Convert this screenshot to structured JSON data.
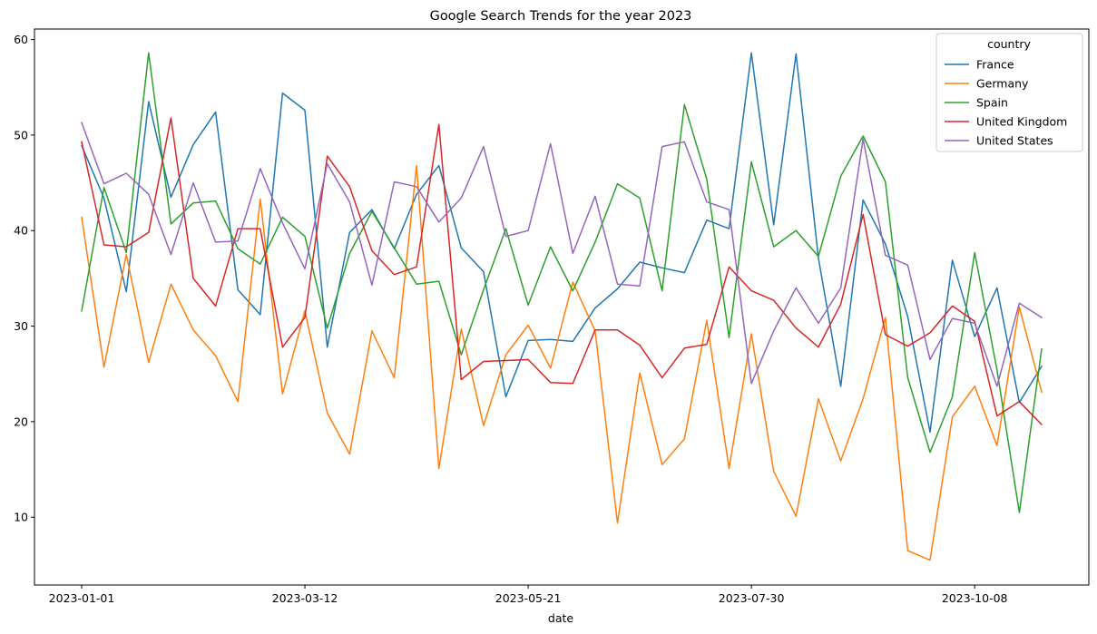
{
  "chart_data": {
    "type": "line",
    "title": "Google Search Trends for the year 2023",
    "xlabel": "date",
    "ylabel": "",
    "x": [
      "2023-01-01",
      "2023-01-08",
      "2023-01-15",
      "2023-01-22",
      "2023-01-29",
      "2023-02-05",
      "2023-02-12",
      "2023-02-19",
      "2023-02-26",
      "2023-03-05",
      "2023-03-12",
      "2023-03-19",
      "2023-03-26",
      "2023-04-02",
      "2023-04-09",
      "2023-04-16",
      "2023-04-23",
      "2023-04-30",
      "2023-05-07",
      "2023-05-14",
      "2023-05-21",
      "2023-05-28",
      "2023-06-04",
      "2023-06-11",
      "2023-06-18",
      "2023-06-25",
      "2023-07-02",
      "2023-07-09",
      "2023-07-16",
      "2023-07-23",
      "2023-07-30",
      "2023-08-06",
      "2023-08-13",
      "2023-08-20",
      "2023-08-27",
      "2023-09-03",
      "2023-09-10",
      "2023-09-17",
      "2023-09-24",
      "2023-10-01",
      "2023-10-08",
      "2023-10-15",
      "2023-10-22",
      "2023-10-29"
    ],
    "x_ticks": [
      "2023-01-01",
      "2023-03-12",
      "2023-05-21",
      "2023-07-30",
      "2023-10-08"
    ],
    "ylim": [
      2.9,
      61.1
    ],
    "y_ticks": [
      10,
      20,
      30,
      40,
      50,
      60
    ],
    "grid": false,
    "legend": {
      "title": "country",
      "position": "top-right"
    },
    "series": [
      {
        "name": "France",
        "color": "#1f77b4",
        "values": [
          48.9,
          43.4,
          33.6,
          53.5,
          43.5,
          49.0,
          52.4,
          33.8,
          31.2,
          54.4,
          52.6,
          27.8,
          39.8,
          42.2,
          38.1,
          43.8,
          46.8,
          38.2,
          35.7,
          22.6,
          28.5,
          28.6,
          28.4,
          31.9,
          33.9,
          36.7,
          36.1,
          35.6,
          41.1,
          40.2,
          58.6,
          40.6,
          58.5,
          37.1,
          23.7,
          43.2,
          38.6,
          31.0,
          18.9,
          36.9,
          28.9,
          34.0,
          22.0,
          25.8
        ]
      },
      {
        "name": "Germany",
        "color": "#ff7f0e",
        "values": [
          41.4,
          25.7,
          37.5,
          26.2,
          34.4,
          29.6,
          26.9,
          22.1,
          43.3,
          22.9,
          31.6,
          20.9,
          16.6,
          29.5,
          24.6,
          46.8,
          15.1,
          29.7,
          19.6,
          27.0,
          30.1,
          25.6,
          34.6,
          29.5,
          9.4,
          25.1,
          15.5,
          18.2,
          30.6,
          15.1,
          29.2,
          14.8,
          10.1,
          22.4,
          15.9,
          22.4,
          30.9,
          6.5,
          5.5,
          20.5,
          23.7,
          17.5,
          32.0,
          23.1
        ]
      },
      {
        "name": "Spain",
        "color": "#2ca02c",
        "values": [
          31.6,
          44.5,
          37.7,
          58.6,
          40.7,
          42.9,
          43.1,
          38.1,
          36.5,
          41.4,
          39.4,
          29.8,
          37.6,
          42.0,
          38.2,
          34.4,
          34.7,
          27.0,
          33.8,
          40.2,
          32.2,
          38.3,
          33.7,
          38.8,
          44.9,
          43.4,
          33.7,
          53.2,
          45.4,
          28.8,
          47.2,
          38.3,
          40.0,
          37.3,
          45.7,
          49.9,
          45.1,
          24.6,
          16.8,
          22.6,
          37.7,
          25.4,
          10.5,
          27.6
        ]
      },
      {
        "name": "United Kingdom",
        "color": "#d62728",
        "values": [
          49.3,
          38.5,
          38.3,
          39.8,
          51.8,
          35.0,
          32.1,
          40.2,
          40.2,
          27.8,
          30.9,
          47.8,
          44.6,
          37.9,
          35.4,
          36.2,
          51.1,
          24.4,
          26.3,
          26.4,
          26.5,
          24.1,
          24.0,
          29.6,
          29.6,
          28.0,
          24.6,
          27.7,
          28.1,
          36.2,
          33.7,
          32.7,
          29.8,
          27.8,
          32.3,
          41.7,
          29.1,
          27.9,
          29.3,
          32.1,
          30.5,
          20.6,
          22.1,
          19.7
        ]
      },
      {
        "name": "United States",
        "color": "#9467bd",
        "values": [
          51.3,
          44.9,
          46.0,
          43.8,
          37.5,
          45.0,
          38.8,
          38.9,
          46.5,
          40.8,
          36.0,
          47.0,
          43.0,
          34.3,
          45.1,
          44.6,
          40.9,
          43.4,
          48.8,
          39.4,
          40.0,
          49.1,
          37.6,
          43.6,
          34.4,
          34.2,
          48.8,
          49.3,
          43.0,
          42.2,
          24.0,
          29.5,
          34.0,
          30.3,
          34.0,
          49.6,
          37.4,
          36.4,
          26.5,
          30.8,
          30.3,
          23.7,
          32.4,
          30.9
        ]
      }
    ]
  }
}
